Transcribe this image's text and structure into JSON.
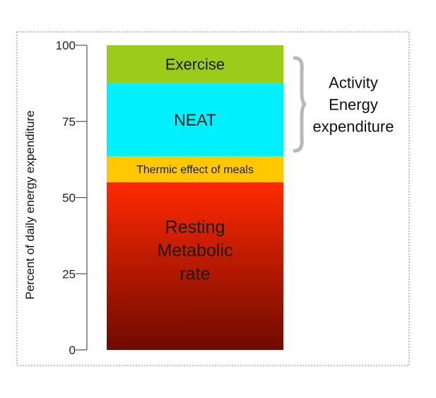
{
  "chart_data": {
    "type": "bar",
    "subtype": "stacked-single",
    "title": "",
    "xlabel": "",
    "ylabel": "Percent of daily energy expenditure",
    "ylim": [
      0,
      100
    ],
    "yticks": [
      0,
      25,
      50,
      75,
      100
    ],
    "grid": false,
    "legend": "none",
    "segments": [
      {
        "name": "rmr",
        "label_lines": [
          "Resting",
          "Metabolic",
          "rate"
        ],
        "start": 0,
        "end": 55,
        "color_top": "#ff2a00",
        "color_bottom": "#6e0a00"
      },
      {
        "name": "tef",
        "label_lines": [
          "Thermic effect of meals"
        ],
        "start": 55,
        "end": 63.5,
        "color_top": "#ffc800",
        "color_bottom": "#ffc800"
      },
      {
        "name": "neat",
        "label_lines": [
          "NEAT"
        ],
        "start": 63.5,
        "end": 87.5,
        "color_top": "#00f0ff",
        "color_bottom": "#00f0ff"
      },
      {
        "name": "exercise",
        "label_lines": [
          "Exercise"
        ],
        "start": 87.5,
        "end": 100,
        "color_top": "#9ccb19",
        "color_bottom": "#9ccb19"
      }
    ],
    "annotations": [
      {
        "text_lines": [
          "Activity",
          "Energy",
          "expenditure"
        ],
        "spans": [
          63.5,
          100
        ]
      }
    ],
    "colors": {
      "axis": "#555555",
      "border": "#888888",
      "brace": "#b8b8b8"
    }
  }
}
